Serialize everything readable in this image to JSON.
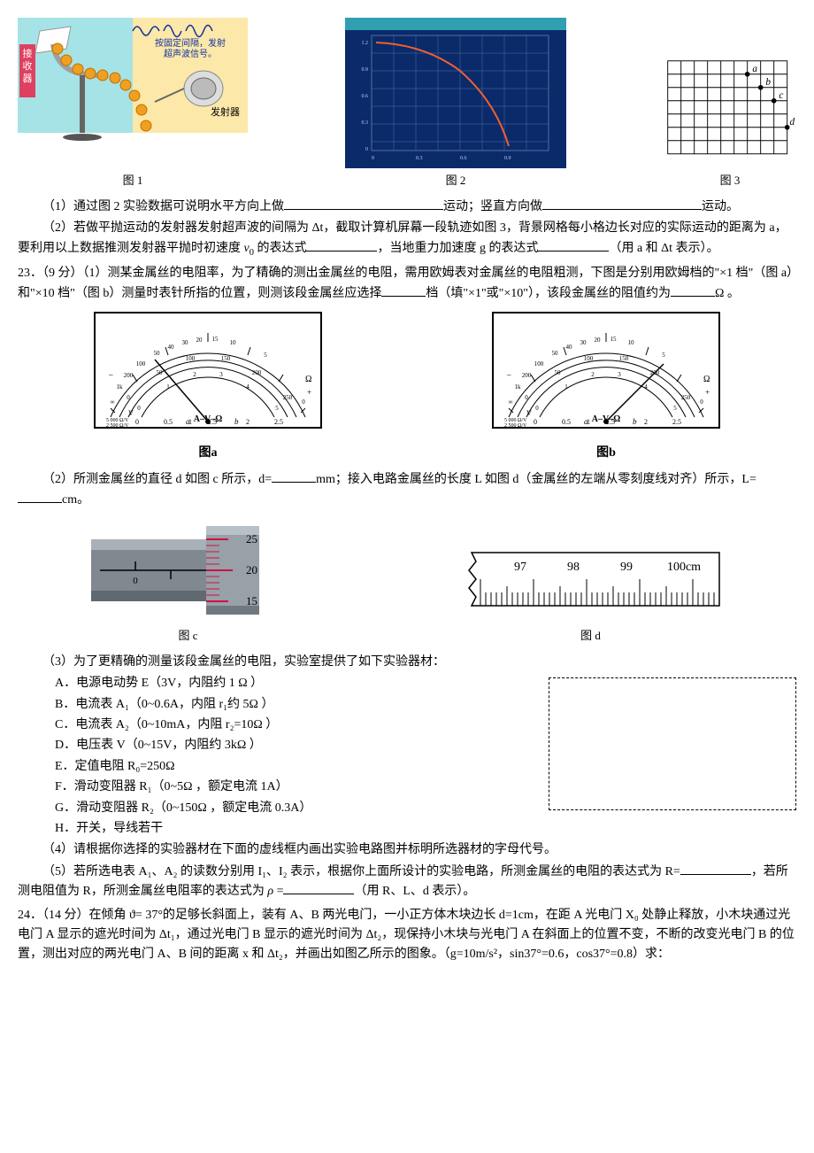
{
  "fig1": {
    "caption": "图 1",
    "labels": {
      "receiver": "接\n收\n器",
      "emitter": "发射器",
      "annot": "按固定间隔，发射\n超声波信号。"
    },
    "colors": {
      "bg1": "#a6e3e6",
      "bg2": "#fce8a8",
      "ball": "#f0a020",
      "stand": "#666",
      "text": "#1030a0"
    }
  },
  "fig2": {
    "caption": "图 2",
    "colors": {
      "screen": "#0a2a6a",
      "grid": "#5070a0",
      "curve": "#f06030",
      "bar": "#30a0b0"
    },
    "xrange": [
      0,
      1.1
    ],
    "yrange": [
      0,
      1.5
    ]
  },
  "fig3": {
    "caption": "图 3",
    "grid_cols": 9,
    "grid_rows": 7,
    "points": [
      {
        "label": "a",
        "col": 6,
        "row": 1
      },
      {
        "label": "b",
        "col": 7,
        "row": 2
      },
      {
        "label": "c",
        "col": 8,
        "row": 3
      },
      {
        "label": "d",
        "col": 9,
        "row": 5
      }
    ],
    "colors": {
      "grid": "#000",
      "point": "#000"
    }
  },
  "q22": {
    "part1_prefix": "（1）通过图 2 实验数据可说明水平方向上做",
    "part1_mid": "运动；竖直方向做",
    "part1_suffix": "运动。",
    "part2_a": "（2）若做平抛运动的发射器发射超声波的间隔为 Δt，截取计算机屏幕一段轨迹如图 3，背景网格每小格边长对应的实际运动的距离为 a，要利用以上数据推测发射器平抛时初速度 ",
    "v0": "v",
    "v0sub": "0",
    "part2_b": " 的表达式",
    "part2_c": "，当地重力加速度 g 的表达式",
    "part2_d": "（用 a 和 Δt 表示）。"
  },
  "q23": {
    "head_num": "23．（9 分）",
    "part1": "（1）测某金属丝的电阻率，为了精确的测出金属丝的电阻，需用欧姆表对金属丝的电阻粗测，下图是分别用欧姆档的\"×1 档\"（图 a）和\"×10 档\"（图 b）测量时表针所指的位置，则测该段金属丝应选择",
    "part1_mid": "档（填\"×1\"或\"×10\"），该段金属丝的阻值约为",
    "part1_end": "Ω 。",
    "meter_a_caption": "图a",
    "meter_b_caption": "图b",
    "meter": {
      "scales_top": [
        "1k",
        "200",
        "100",
        "50",
        "40",
        "30",
        "20",
        "15",
        "10",
        "5",
        "0"
      ],
      "scales_mid": [
        "0",
        "50",
        "100",
        "150",
        "200",
        "250"
      ],
      "scales_v": [
        "0",
        "1",
        "2",
        "3",
        "4",
        "5"
      ],
      "scales_bot": [
        "0",
        "0.5",
        "1",
        "1.5",
        "2",
        "2.5"
      ],
      "label_avw": "A–V–Ω",
      "label_ohm": "Ω",
      "label_v": "V",
      "label_res": "5 000 Ω/V\n2 500 Ω/V",
      "needle_a_angle": -50,
      "needle_b_angle": 30
    },
    "part2_a": "（2）所测金属丝的直径 d 如图 c 所示，d=",
    "part2_b": "mm；接入电路金属丝的长度 L 如图 d（金属丝的左端从零刻度线对齐）所示，L=",
    "part2_c": "cm。",
    "micrometer": {
      "caption": "图 c",
      "main_marks": [
        "0"
      ],
      "thimble_marks": [
        "25",
        "20",
        "15"
      ],
      "colors": {
        "body": "#808890",
        "highlight": "#a8b0b8",
        "mark": "#d01040"
      }
    },
    "ruler": {
      "caption": "图 d",
      "labels": [
        "97",
        "98",
        "99",
        "100cm"
      ]
    },
    "part3_intro": "（3）为了更精确的测量该段金属丝的电阻，实验室提供了如下实验器材：",
    "equip": [
      "A．电源电动势 E（3V，内阻约 1 Ω ）",
      "B．电流表 A₁（0~0.6A，内阻 r₁约 5Ω ）",
      "C．电流表 A₂（0~10mA，内阻 r₂=10Ω ）",
      "D．电压表 V（0~15V，内阻约 3kΩ ）",
      "E．定值电阻 R₀=250Ω",
      "F．滑动变阻器 R₁（0~5Ω ，额定电流 1A）",
      "G．滑动变阻器 R₂（0~150Ω ，额定电流 0.3A）",
      "H．开关，导线若干"
    ],
    "part4": "（4）请根据你选择的实验器材在下面的虚线框内画出实验电路图并标明所选器材的字母代号。",
    "part5_a": "（5）若所选电表 A₁、A₂ 的读数分别用 I₁、I₂ 表示，根据你上面所设计的实验电路，所测金属丝的电阻的表达式为 R=",
    "part5_b": "，若所测电阻值为 R，所测金属丝电阻率的表达式为",
    "rho": "ρ",
    "part5_c": " =",
    "part5_d": "（用 R、L、d 表示）。"
  },
  "q24": {
    "text": "24．（14 分）在倾角 ϑ= 37°的足够长斜面上，装有 A、B 两光电门，一小正方体木块边长 d=1cm，在距 A 光电门 X₀ 处静止释放，小木块通过光电门 A 显示的遮光时间为 Δt₁，通过光电门 B 显示的遮光时间为 Δt₂，现保持小木块与光电门 A 在斜面上的位置不变，不断的改变光电门 B 的位置，测出对应的两光电门 A、B 间的距离 x 和 Δt₂，并画出如图乙所示的图象。（g=10m/s²，sin37°=0.6，cos37°=0.8）求："
  }
}
